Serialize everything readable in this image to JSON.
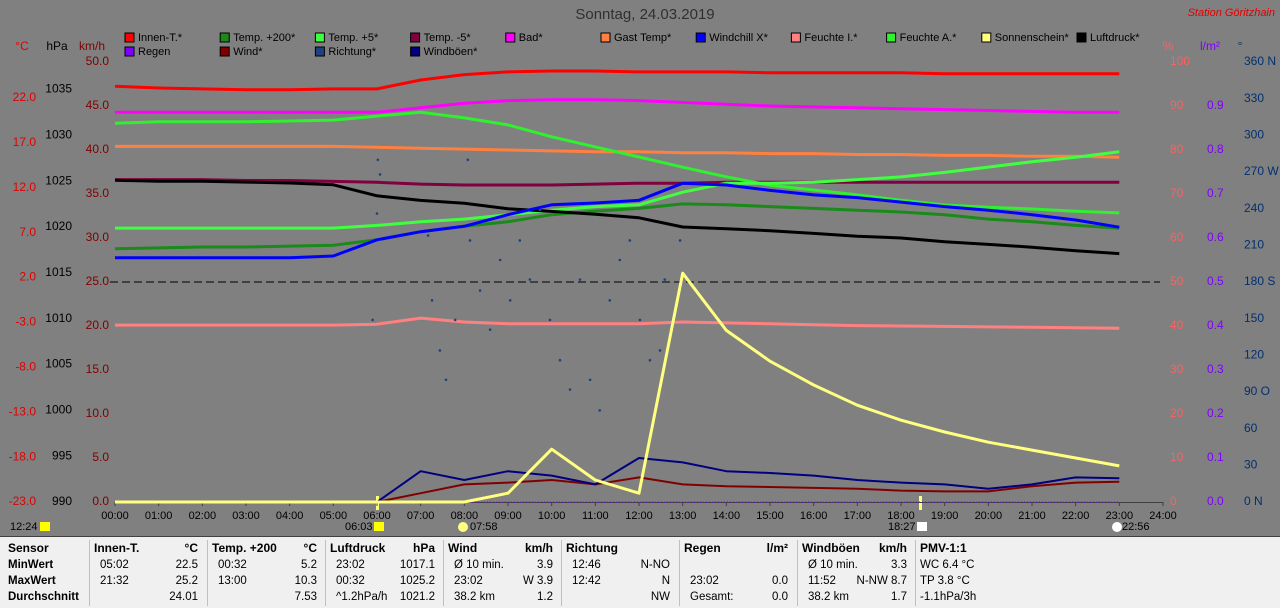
{
  "chart_data": {
    "type": "line",
    "title": "Sonntag, 24.03.2019",
    "station": "Station Göritzhain",
    "x": [
      0,
      1,
      2,
      3,
      4,
      5,
      6,
      7,
      8,
      9,
      10,
      11,
      12,
      13,
      14,
      15,
      16,
      17,
      18,
      19,
      20,
      21,
      22,
      23
    ],
    "xlim": [
      0,
      24
    ],
    "xticks": [
      {
        "value": 0,
        "label": "00:00"
      },
      {
        "value": 1,
        "label": "01:00"
      },
      {
        "value": 2,
        "label": "02:00"
      },
      {
        "value": 3,
        "label": "03:00"
      },
      {
        "value": 4,
        "label": "04:00"
      },
      {
        "value": 5,
        "label": "05:00"
      },
      {
        "value": 6,
        "label": "06:00"
      },
      {
        "value": 7,
        "label": "07:00"
      },
      {
        "value": 8,
        "label": "08:00"
      },
      {
        "value": 9,
        "label": "09:00"
      },
      {
        "value": 10,
        "label": "10:00"
      },
      {
        "value": 11,
        "label": "11:00"
      },
      {
        "value": 12,
        "label": "12:00"
      },
      {
        "value": 13,
        "label": "13:00"
      },
      {
        "value": 14,
        "label": "14:00"
      },
      {
        "value": 15,
        "label": "15:00"
      },
      {
        "value": 16,
        "label": "16:00"
      },
      {
        "value": 17,
        "label": "17:00"
      },
      {
        "value": 18,
        "label": "18:00"
      },
      {
        "value": 19,
        "label": "19:00"
      },
      {
        "value": 20,
        "label": "20:00"
      },
      {
        "value": 21,
        "label": "21:00"
      },
      {
        "value": 22,
        "label": "22:00"
      },
      {
        "value": 23,
        "label": "23:00"
      },
      {
        "value": 24,
        "label": "24:00"
      }
    ],
    "axes": [
      {
        "label": "°C",
        "color": "#e00000",
        "ylim": [
          -23,
          26
        ],
        "yticks": [
          {
            "value": -23,
            "label": "-23.0"
          },
          {
            "value": -18,
            "label": "-18.0"
          },
          {
            "value": -13,
            "label": "-13.0"
          },
          {
            "value": -8,
            "label": "-8.0"
          },
          {
            "value": -3,
            "label": "-3.0"
          },
          {
            "value": 2,
            "label": "2.0"
          },
          {
            "value": 7,
            "label": "7.0"
          },
          {
            "value": 12,
            "label": "12.0"
          },
          {
            "value": 17,
            "label": "17.0"
          },
          {
            "value": 22,
            "label": "22.0"
          }
        ]
      },
      {
        "label": "hPa",
        "color": "#000000",
        "ylim": [
          990,
          1038
        ],
        "yticks": [
          990,
          995,
          1000,
          1005,
          1010,
          1015,
          1020,
          1025,
          1030,
          1035
        ]
      },
      {
        "label": "km/h",
        "color": "#800000",
        "ylim": [
          0,
          50
        ],
        "yticks": [
          {
            "value": 0,
            "label": "0.0"
          },
          {
            "value": 5,
            "label": "5.0"
          },
          {
            "value": 10,
            "label": "10.0"
          },
          {
            "value": 15,
            "label": "15.0"
          },
          {
            "value": 20,
            "label": "20.0"
          },
          {
            "value": 25,
            "label": "25.0"
          },
          {
            "value": 30,
            "label": "30.0"
          },
          {
            "value": 35,
            "label": "35.0"
          },
          {
            "value": 40,
            "label": "40.0"
          },
          {
            "value": 45,
            "label": "45.0"
          },
          {
            "value": 50,
            "label": "50.0"
          }
        ]
      },
      {
        "label": "%",
        "color": "#ff6060",
        "ylim": [
          0,
          100
        ],
        "yticks": [
          0,
          10,
          20,
          30,
          40,
          50,
          60,
          70,
          80,
          90,
          100
        ]
      },
      {
        "label": "l/m²",
        "color": "#8000ff",
        "ylim": [
          0,
          1
        ],
        "yticks": [
          {
            "value": 0,
            "label": "0.0"
          },
          {
            "value": 0.1,
            "label": "0.1"
          },
          {
            "value": 0.2,
            "label": "0.2"
          },
          {
            "value": 0.3,
            "label": "0.3"
          },
          {
            "value": 0.4,
            "label": "0.4"
          },
          {
            "value": 0.5,
            "label": "0.5"
          },
          {
            "value": 0.6,
            "label": "0.6"
          },
          {
            "value": 0.7,
            "label": "0.7"
          },
          {
            "value": 0.8,
            "label": "0.8"
          },
          {
            "value": 0.9,
            "label": "0.9"
          }
        ]
      },
      {
        "label": "°",
        "color": "#003070",
        "ylim": [
          0,
          360
        ],
        "yticks": [
          {
            "value": 0,
            "label": "0 N"
          },
          30,
          60,
          {
            "value": 90,
            "label": "90 O"
          },
          120,
          150,
          {
            "value": 180,
            "label": "180 S"
          },
          210,
          240,
          {
            "value": 270,
            "label": "270 W"
          },
          300,
          330,
          {
            "value": 360,
            "label": "360 N"
          }
        ]
      }
    ],
    "dashed_line": {
      "axis": 2,
      "value": 25
    },
    "series": [
      {
        "name": "Innen-T.*",
        "color": "#ff0000",
        "axis": 0,
        "values": [
          23.3,
          23.1,
          23.0,
          22.9,
          22.9,
          23.0,
          23.0,
          24.0,
          24.6,
          24.9,
          25.0,
          25.0,
          24.9,
          24.9,
          24.9,
          24.8,
          24.8,
          24.8,
          24.8,
          24.7,
          24.7,
          24.7,
          24.7,
          24.7
        ]
      },
      {
        "name": "Temp. +200*",
        "color": "#1a8a1a",
        "axis": 0,
        "values": [
          5.2,
          5.3,
          5.4,
          5.4,
          5.5,
          5.6,
          6.2,
          7.1,
          7.7,
          8.2,
          9.0,
          9.4,
          9.7,
          10.2,
          10.1,
          9.9,
          9.7,
          9.5,
          9.3,
          9.0,
          8.5,
          8.2,
          7.8,
          7.5
        ]
      },
      {
        "name": "Temp. +5*",
        "color": "#40ff40",
        "axis": 0,
        "values": [
          7.5,
          7.5,
          7.5,
          7.5,
          7.5,
          7.5,
          7.8,
          8.2,
          8.5,
          9.0,
          9.5,
          9.9,
          10.1,
          11.5,
          12.5,
          12.5,
          12.6,
          12.9,
          13.2,
          13.7,
          14.3,
          14.9,
          15.4,
          16.0
        ]
      },
      {
        "name": "Temp. -5*",
        "color": "#800040",
        "axis": 0,
        "values": [
          12.9,
          12.9,
          12.9,
          12.8,
          12.8,
          12.7,
          12.6,
          12.4,
          12.3,
          12.3,
          12.3,
          12.4,
          12.5,
          12.5,
          12.6,
          12.6,
          12.6,
          12.6,
          12.6,
          12.6,
          12.6,
          12.6,
          12.6,
          12.6
        ]
      },
      {
        "name": "Bad*",
        "color": "#ff00ff",
        "axis": 0,
        "values": [
          20.4,
          20.4,
          20.4,
          20.4,
          20.4,
          20.4,
          20.4,
          20.9,
          21.4,
          21.7,
          21.8,
          21.8,
          21.7,
          21.5,
          21.3,
          21.1,
          21.0,
          20.9,
          20.8,
          20.7,
          20.6,
          20.5,
          20.4,
          20.4
        ]
      },
      {
        "name": "Gast Temp*",
        "color": "#ff8040",
        "axis": 0,
        "values": [
          16.6,
          16.6,
          16.6,
          16.6,
          16.6,
          16.6,
          16.5,
          16.4,
          16.3,
          16.2,
          16.1,
          16.0,
          16.0,
          15.9,
          15.9,
          15.8,
          15.8,
          15.7,
          15.7,
          15.6,
          15.6,
          15.5,
          15.5,
          15.4
        ]
      },
      {
        "name": "Windchill X*",
        "color": "#0000ff",
        "axis": 0,
        "values": [
          4.2,
          4.2,
          4.2,
          4.2,
          4.2,
          4.4,
          6.2,
          7.1,
          7.7,
          9.0,
          10.1,
          10.3,
          10.6,
          12.5,
          12.3,
          11.7,
          11.2,
          10.9,
          10.4,
          9.9,
          9.5,
          9.0,
          8.4,
          7.6
        ]
      },
      {
        "name": "Feuchte I.*",
        "color": "#ff8080",
        "axis": 3,
        "values": [
          40.2,
          40.2,
          40.2,
          40.2,
          40.2,
          40.2,
          40.4,
          41.8,
          40.9,
          40.5,
          40.5,
          40.5,
          40.5,
          40.9,
          40.7,
          40.5,
          40.3,
          40.1,
          40.0,
          39.9,
          39.8,
          39.7,
          39.6,
          39.5
        ]
      },
      {
        "name": "Feuchte A.*",
        "color": "#30f030",
        "axis": 3,
        "values": [
          86.1,
          86.4,
          86.4,
          86.4,
          86.6,
          86.8,
          87.7,
          88.6,
          87.3,
          85.7,
          83.0,
          80.7,
          78.4,
          76.1,
          73.9,
          72.0,
          70.9,
          69.8,
          68.6,
          67.5,
          67.0,
          66.6,
          66.1,
          65.7
        ]
      },
      {
        "name": "Sonnenschein*",
        "color": "#ffff80",
        "axis": 3,
        "values": [
          0,
          0,
          0,
          0,
          0,
          0,
          0,
          0,
          0,
          2,
          12,
          5,
          2,
          52,
          39,
          32,
          26.6,
          22,
          18.6,
          15.9,
          13.6,
          11.8,
          10,
          8.2
        ]
      },
      {
        "name": "Luftdruck*",
        "color": "#000000",
        "axis": 1,
        "values": [
          1025.1,
          1025.0,
          1025.0,
          1024.9,
          1024.8,
          1024.6,
          1023.4,
          1022.9,
          1022.6,
          1022.0,
          1021.7,
          1021.4,
          1021.0,
          1020.0,
          1019.8,
          1019.6,
          1019.3,
          1019.0,
          1018.8,
          1018.4,
          1018.1,
          1017.8,
          1017.4,
          1017.1
        ]
      },
      {
        "name": "Regen",
        "color": "#8000ff",
        "axis": 4,
        "values": [
          0,
          0,
          0,
          0,
          0,
          0,
          0,
          0,
          0,
          0,
          0,
          0,
          0,
          0,
          0,
          0,
          0,
          0,
          0,
          0,
          0,
          0,
          0,
          0
        ]
      },
      {
        "name": "Wind*",
        "color": "#800000",
        "axis": 2,
        "values": [
          0,
          0,
          0,
          0,
          0,
          0,
          0,
          1.0,
          2.0,
          2.2,
          2.5,
          2.0,
          2.8,
          2.0,
          1.8,
          1.7,
          1.6,
          1.5,
          1.3,
          1.2,
          1.2,
          1.8,
          2.2,
          2.3
        ]
      },
      {
        "name": "Richtung*",
        "color": "#204080",
        "axis": 5,
        "x": [
          5.9,
          6.0,
          6.02,
          6.07,
          7.17,
          7.26,
          7.44,
          7.58,
          7.79,
          8.08,
          8.13,
          8.36,
          8.59,
          8.82,
          9.05,
          9.27,
          9.5,
          9.73,
          9.96,
          10.19,
          10.42,
          10.65,
          10.88,
          11.1,
          11.33,
          11.56,
          11.79,
          12.02,
          12.25,
          12.48,
          12.59,
          12.94
        ],
        "values": [
          149,
          236,
          280,
          268,
          218,
          165,
          124,
          100,
          149,
          280,
          214,
          173,
          141,
          198,
          165,
          214,
          182,
          239,
          149,
          116,
          92,
          182,
          100,
          75,
          165,
          198,
          214,
          149,
          116,
          124,
          182,
          214
        ]
      },
      {
        "name": "Windböen*",
        "color": "#000080",
        "axis": 2,
        "values": [
          0,
          0,
          0,
          0,
          0,
          0,
          0,
          3.5,
          2.5,
          3.5,
          3.0,
          2.0,
          5.0,
          4.5,
          3.5,
          3.3,
          3.0,
          2.5,
          2.2,
          2.0,
          1.5,
          2.0,
          2.8,
          2.7
        ]
      }
    ],
    "sun_times": [
      "12:24",
      "06:03",
      "07:58",
      "18:27",
      "22:56"
    ]
  },
  "table": {
    "groups": [
      {
        "title": "Sensor",
        "rows": [
          [
            "MinWert"
          ],
          [
            "MaxWert"
          ],
          [
            "Durchschnitt"
          ]
        ]
      },
      {
        "title": "Innen-T.",
        "unit": "°C",
        "rows": [
          [
            "05:02",
            "22.5"
          ],
          [
            "21:32",
            "25.2"
          ],
          [
            null,
            "24.01"
          ]
        ]
      },
      {
        "title": "Temp. +200",
        "unit": "°C",
        "rows": [
          [
            "00:32",
            "5.2"
          ],
          [
            "13:00",
            "10.3"
          ],
          [
            null,
            "7.53"
          ]
        ]
      },
      {
        "title": "Luftdruck",
        "unit": "hPa",
        "rows": [
          [
            "23:02",
            "1017.1"
          ],
          [
            "00:32",
            "1025.2"
          ],
          [
            "^1.2hPa/h",
            "1021.2"
          ]
        ]
      },
      {
        "title": "Wind",
        "unit": "km/h",
        "rows": [
          [
            "Ø 10 min.",
            "3.9"
          ],
          [
            "23:02",
            "W 3.9"
          ],
          [
            "38.2 km",
            "1.2"
          ]
        ]
      },
      {
        "title": "Richtung",
        "rows": [
          [
            "12:46",
            "N-NO"
          ],
          [
            "12:42",
            "N"
          ],
          [
            null,
            "NW"
          ]
        ]
      },
      {
        "title": "Regen",
        "unit": "l/m²",
        "rows": [
          [
            null,
            null
          ],
          [
            "23:02",
            "0.0"
          ],
          [
            "Gesamt:",
            "0.0"
          ]
        ]
      },
      {
        "title": "Windböen",
        "unit": "km/h",
        "rows": [
          [
            "Ø 10 min.",
            "3.3"
          ],
          [
            "11:52",
            "N-NW 8.7"
          ],
          [
            "38.2 km",
            "1.7"
          ]
        ]
      },
      {
        "title": "PMV-1:1",
        "rows": [
          [
            "WC 6.4 °C"
          ],
          [
            "TP 3.8 °C"
          ],
          [
            "-1.1hPa/3h"
          ]
        ]
      }
    ]
  }
}
